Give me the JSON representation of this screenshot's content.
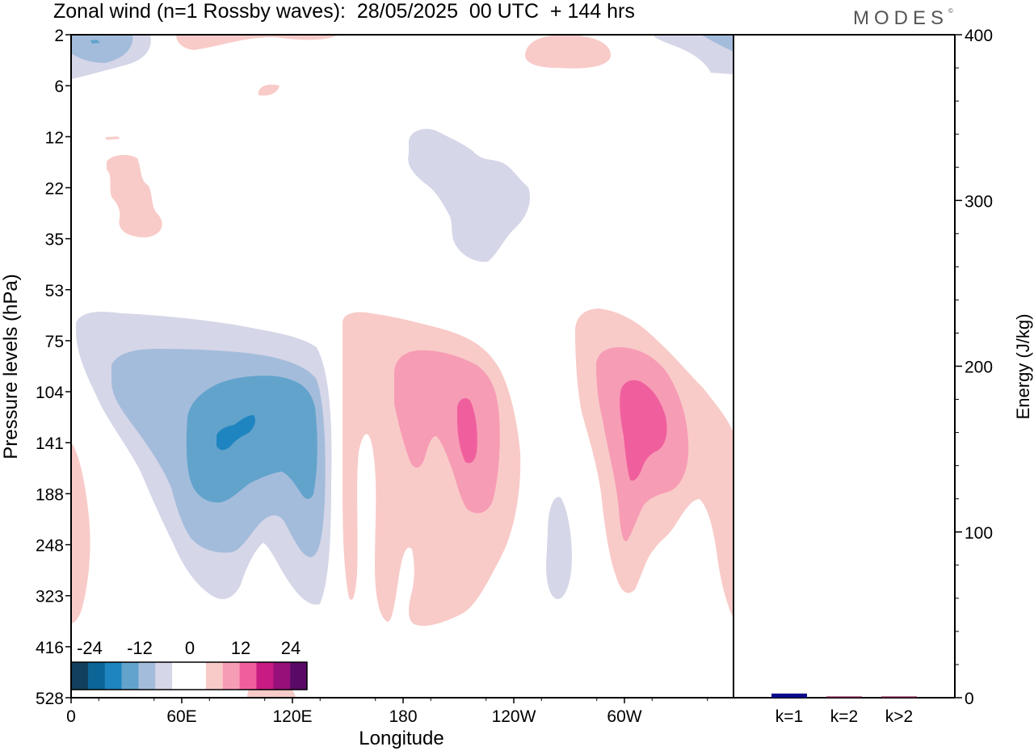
{
  "header": {
    "title": "Zonal wind (n=1 Rossby waves):  28/05/2025  00 UTC  + 144 hrs",
    "logo": "MODES",
    "logo_mark": "©"
  },
  "chart_data": [
    {
      "type": "heatmap",
      "title": "Zonal wind (n=1 Rossby waves):  28/05/2025  00 UTC  + 144 hrs",
      "xlabel": "Longitude",
      "ylabel": "Pressure levels (hPa)",
      "x_ticks": [
        "0",
        "60E",
        "120E",
        "180",
        "120W",
        "60W"
      ],
      "y_ticks": [
        "2",
        "6",
        "12",
        "22",
        "35",
        "53",
        "75",
        "104",
        "141",
        "188",
        "248",
        "323",
        "416",
        "528"
      ],
      "colorbar": {
        "labels": [
          "-24",
          "-12",
          "0",
          "12",
          "24"
        ],
        "colors": [
          "#123f5b",
          "#0b6597",
          "#1f85c0",
          "#62a3cc",
          "#a4bcdb",
          "#d5d6e8",
          "#ffffff",
          "#ffffff",
          "#f8cbc8",
          "#f79cb5",
          "#f05f9d",
          "#c91c83",
          "#97107a",
          "#5a0a66"
        ]
      },
      "colors": {
        "neg_light": "#d5d6e8",
        "neg_mid": "#a4bcdb",
        "neg_strong": "#62a3cc",
        "neg_core": "#1f85c0",
        "pos_light": "#f8cbc8",
        "pos_mid": "#f79cb5",
        "pos_strong": "#f05f9d"
      }
    },
    {
      "type": "bar",
      "categories": [
        "k=1",
        "k=2",
        "k>2"
      ],
      "values": [
        2.5,
        0.5,
        0.5
      ],
      "ylabel": "Energy (J/kg)",
      "ylim": [
        0,
        400
      ],
      "y_ticks": [
        "0",
        "100",
        "200",
        "300",
        "400"
      ],
      "colors": [
        "#0a0a8a",
        "#6a0a3a",
        "#6a0a3a"
      ]
    }
  ]
}
